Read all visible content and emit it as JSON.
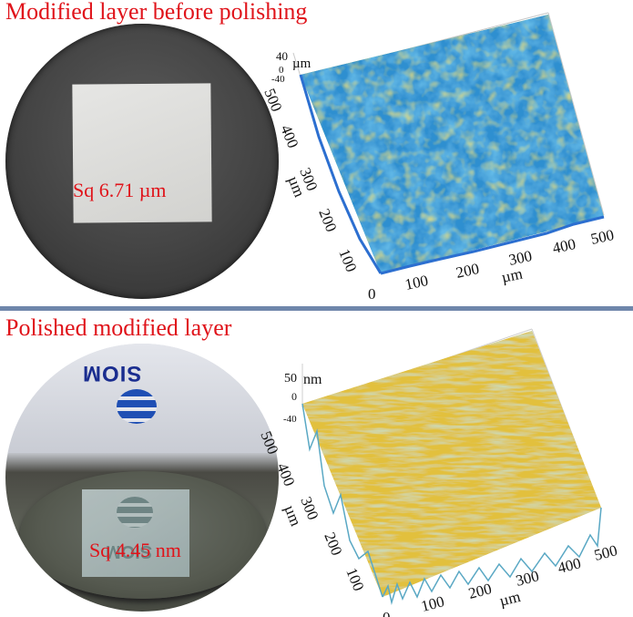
{
  "panels": [
    {
      "title": "Modified layer before polishing",
      "sq_label": "Sq 6.71 µm",
      "z_unit": "µm",
      "z_ticks": [
        "40",
        "0",
        "-40"
      ],
      "y_ticks": [
        "500",
        "400",
        "300",
        "200",
        "100"
      ],
      "y_unit": "µm",
      "x_ticks": [
        "0",
        "100",
        "200",
        "300",
        "400",
        "500"
      ],
      "x_unit": "µm"
    },
    {
      "title": "Polished modified layer",
      "sq_label": "Sq 4.45 nm",
      "z_unit": "nm",
      "z_ticks": [
        "50",
        "0",
        "-40"
      ],
      "y_ticks": [
        "500",
        "400",
        "300",
        "200",
        "100"
      ],
      "y_unit": "µm",
      "x_ticks": [
        "0",
        "100",
        "200",
        "300",
        "400",
        "500"
      ],
      "x_unit": "µm",
      "logo_text": "SIOM"
    }
  ],
  "colors": {
    "title_red": "#e0141b",
    "divider": "#6f86ab",
    "surface_rough": [
      "#2c6fd0",
      "#2fa3c8",
      "#4bbf8f",
      "#b9d23a",
      "#f2c12e"
    ],
    "surface_polished": [
      "#d8b83a",
      "#e8c13e",
      "#cdbf55",
      "#a9c07c"
    ]
  }
}
